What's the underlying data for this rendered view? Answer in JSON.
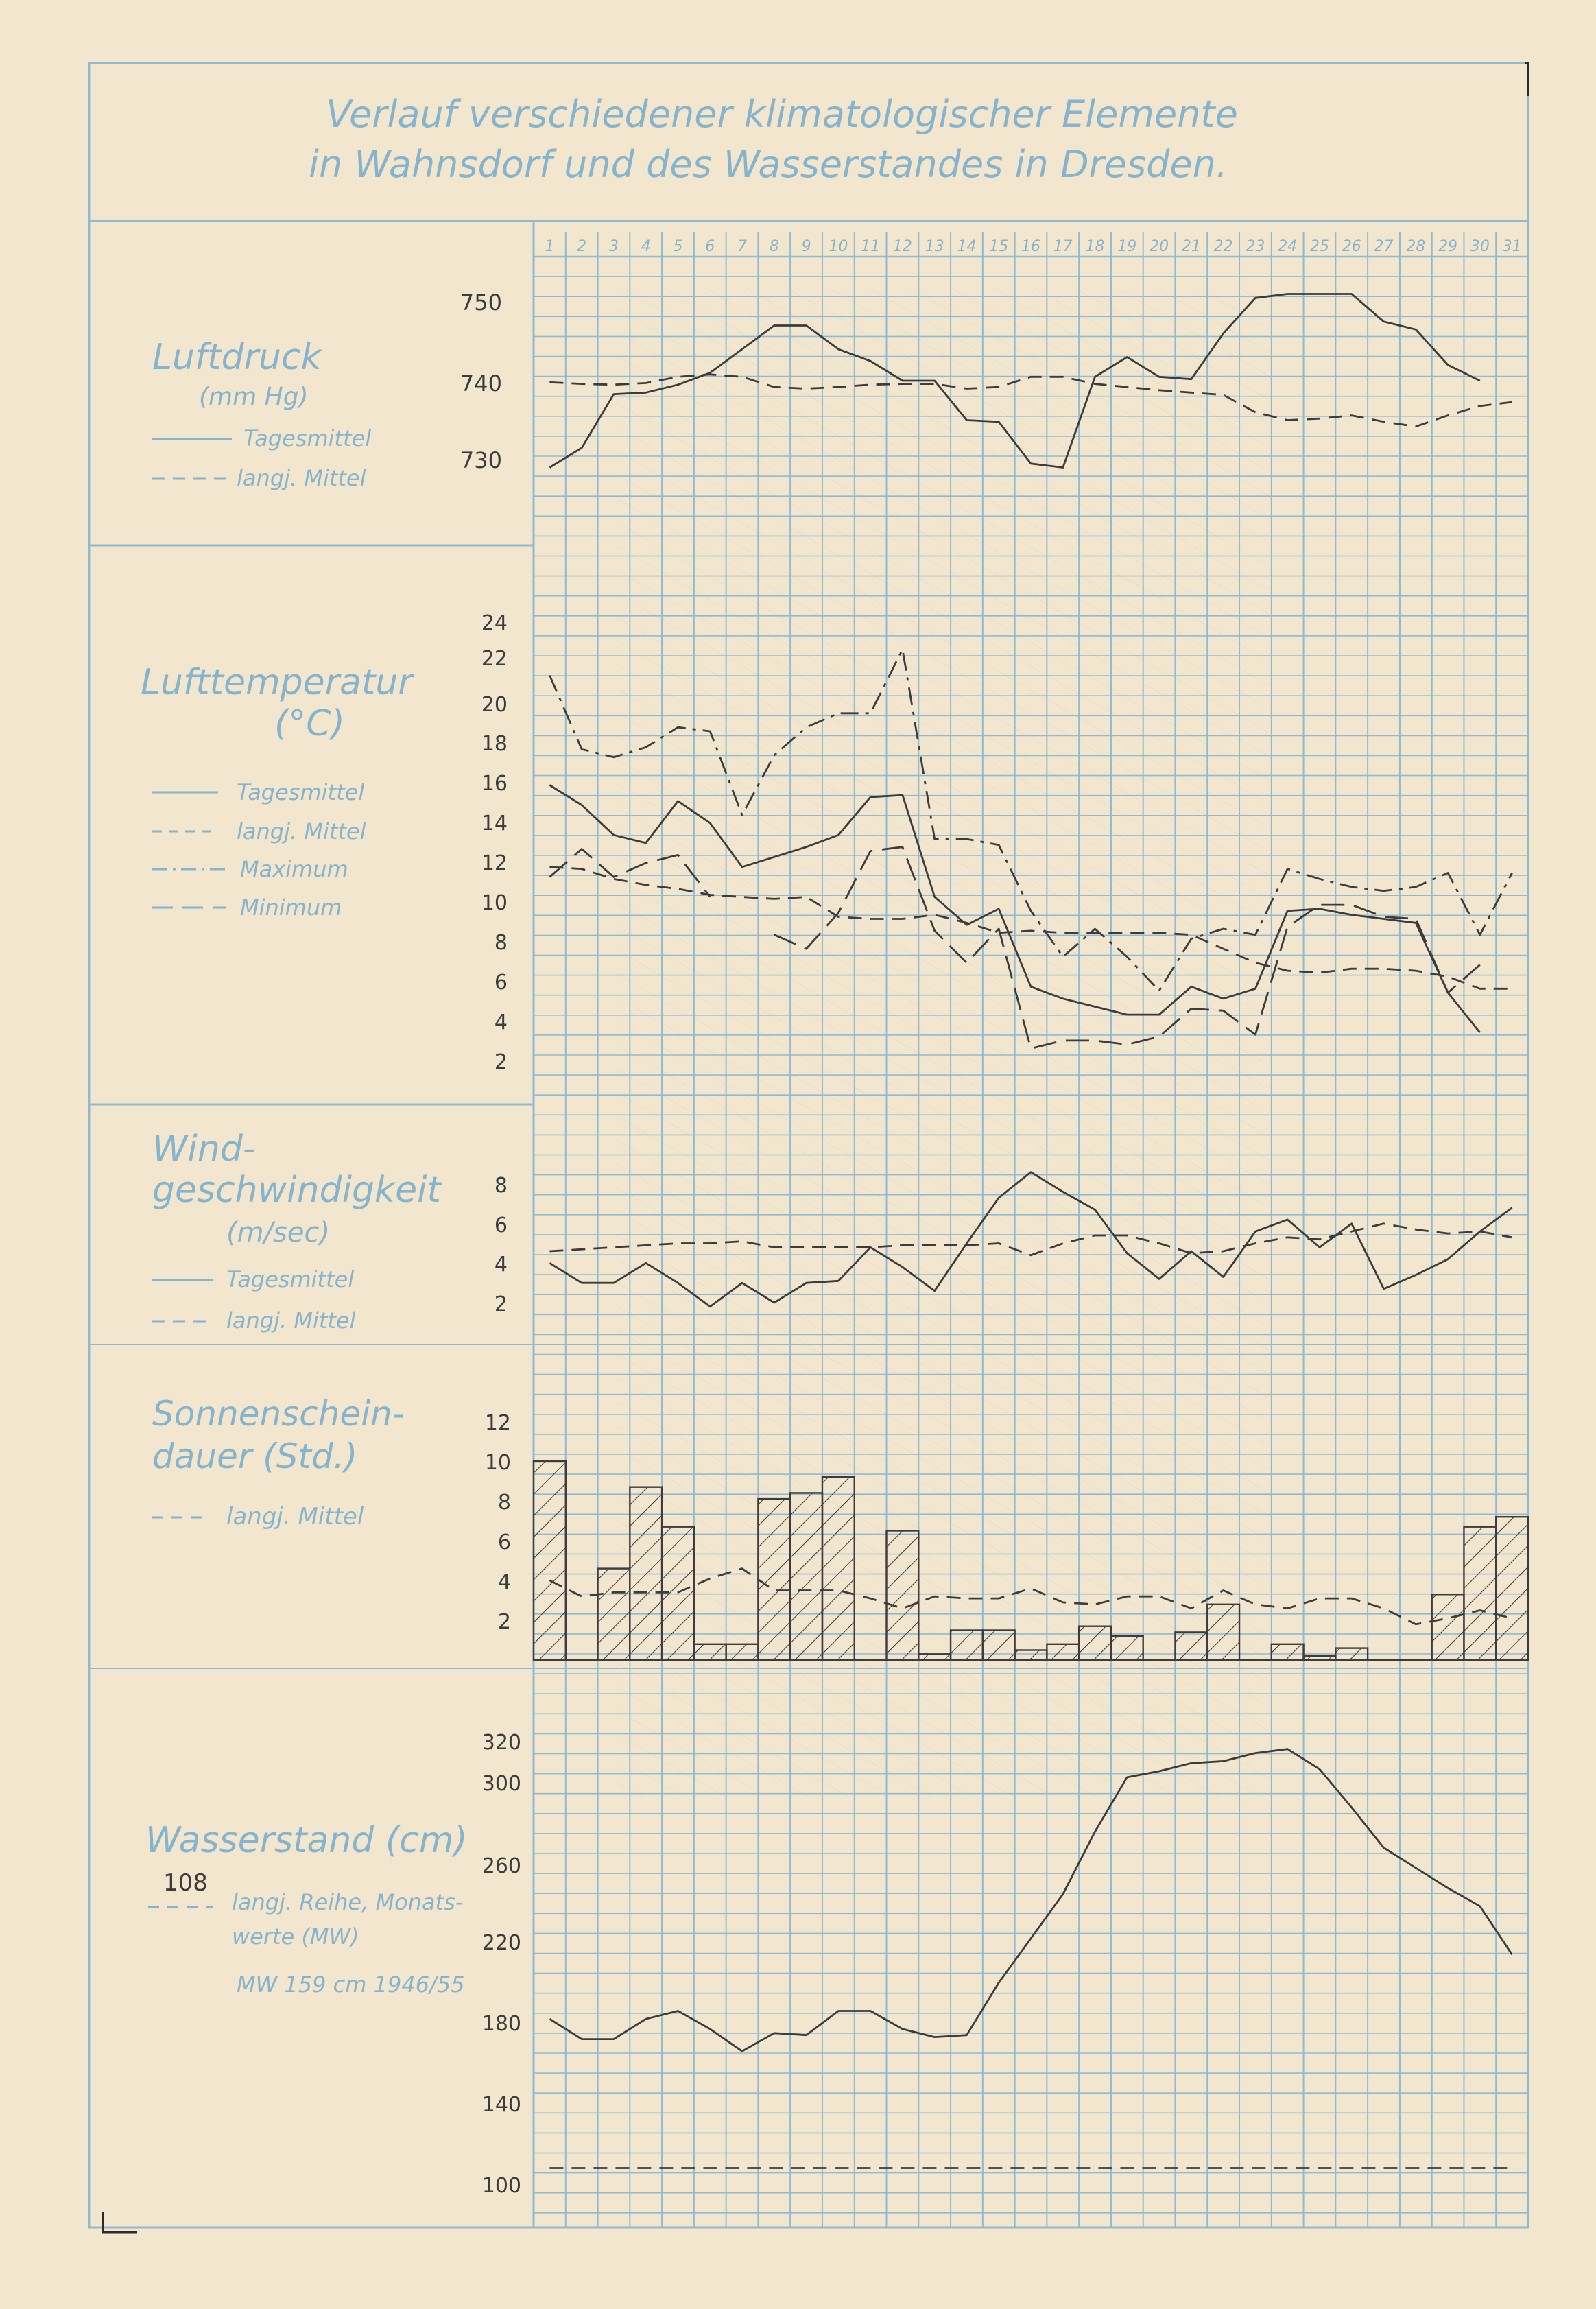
{
  "title": {
    "line1": "Verlauf verschiedener klimatologischer Elemente",
    "line2": "in Wahnsdorf und des Wasserstandes in Dresden."
  },
  "colors": {
    "grid": "#8fbad0",
    "ink": "#3c3c3c",
    "paper": "#f3e6cf"
  },
  "days": [
    "1",
    "2",
    "3",
    "4",
    "5",
    "6",
    "7",
    "8",
    "9",
    "10",
    "11",
    "12",
    "13",
    "14",
    "15",
    "16",
    "17",
    "18",
    "19",
    "20",
    "21",
    "22",
    "23",
    "24",
    "25",
    "26",
    "27",
    "28",
    "29",
    "30",
    "31"
  ],
  "panels": {
    "luftdruck": {
      "title": "Luftdruck",
      "unit": "(mm Hg)",
      "legend": [
        "Tagesmittel",
        "langj. Mittel"
      ],
      "ticks": [
        "750",
        "740",
        "730"
      ]
    },
    "temperatur": {
      "title_line1": "Lufttemperatur",
      "unit": "(°C)",
      "legend": [
        "Tagesmittel",
        "langj. Mittel",
        "Maximum",
        "Minimum"
      ],
      "ticks": [
        "24",
        "22",
        "20",
        "18",
        "16",
        "14",
        "12",
        "10",
        "8",
        "6",
        "4",
        "2"
      ]
    },
    "wind": {
      "title_line1": "Wind-",
      "title_line2": "geschwindigkeit",
      "unit": "(m/sec)",
      "legend": [
        "Tagesmittel",
        "langj. Mittel"
      ],
      "ticks": [
        "8",
        "6",
        "4",
        "2"
      ]
    },
    "sonne": {
      "title_line1": "Sonnenschein-",
      "title_line2": "dauer (Std.)",
      "legend": [
        "langj. Mittel"
      ],
      "ticks": [
        "12",
        "10",
        "8",
        "6",
        "4",
        "2"
      ]
    },
    "wasser": {
      "title": "Wasserstand (cm)",
      "note_value": "108",
      "legend_line1": "langj. Reihe, Monats-",
      "legend_line2": "werte (MW)",
      "mw_note": "MW 159 cm 1946/55",
      "ticks": [
        "320",
        "300",
        "260",
        "220",
        "180",
        "140",
        "100"
      ]
    }
  },
  "chart_data": [
    {
      "type": "line",
      "title": "Luftdruck",
      "ylabel": "(mm Hg)",
      "ylim": [
        726,
        755
      ],
      "x": [
        1,
        2,
        3,
        4,
        5,
        6,
        7,
        8,
        9,
        10,
        11,
        12,
        13,
        14,
        15,
        16,
        17,
        18,
        19,
        20,
        21,
        22,
        23,
        24,
        25,
        26,
        27,
        28,
        29,
        30,
        31
      ],
      "series": [
        {
          "name": "Tagesmittel",
          "style": "solid",
          "values": [
            729,
            731.5,
            738.3,
            738.5,
            739.5,
            741,
            744,
            747,
            747,
            744,
            742.5,
            740,
            740,
            735,
            734.8,
            729.5,
            729,
            740.5,
            743,
            740.5,
            740.2,
            746,
            750.5,
            751,
            751,
            751,
            747.5,
            746.5,
            742,
            740,
            null
          ]
        },
        {
          "name": "langj. Mittel",
          "style": "dashed",
          "values": [
            739.8,
            739.6,
            739.5,
            739.7,
            740.5,
            740.8,
            740.5,
            739.2,
            739,
            739.2,
            739.5,
            739.6,
            739.6,
            739,
            739.2,
            740.5,
            740.5,
            739.6,
            739.2,
            738.8,
            738.5,
            738.2,
            736,
            735,
            735.2,
            735.6,
            734.8,
            734.2,
            735.6,
            736.8,
            737.3
          ]
        }
      ]
    },
    {
      "type": "line",
      "title": "Lufttemperatur",
      "ylabel": "(°C)",
      "ylim": [
        0,
        24
      ],
      "x": [
        1,
        2,
        3,
        4,
        5,
        6,
        7,
        8,
        9,
        10,
        11,
        12,
        13,
        14,
        15,
        16,
        17,
        18,
        19,
        20,
        21,
        22,
        23,
        24,
        25,
        26,
        27,
        28,
        29,
        30,
        31
      ],
      "series": [
        {
          "name": "Tagesmittel",
          "style": "solid",
          "values": [
            15.8,
            14.8,
            13.3,
            12.9,
            15,
            13.9,
            11.7,
            12.2,
            12.7,
            13.3,
            15.2,
            15.3,
            10.2,
            8.8,
            9.6,
            5.7,
            5.1,
            4.7,
            4.3,
            4.3,
            5.7,
            5.1,
            5.6,
            9.5,
            9.6,
            9.3,
            9.1,
            8.9,
            5.4,
            3.4,
            null
          ]
        },
        {
          "name": "langj. Mittel",
          "style": "dashed",
          "values": [
            11.7,
            11.6,
            11.1,
            10.8,
            10.6,
            10.3,
            10.2,
            10.1,
            10.2,
            9.2,
            9.1,
            9.1,
            9.3,
            8.9,
            8.4,
            8.5,
            8.4,
            8.4,
            8.4,
            8.4,
            8.3,
            7.6,
            6.9,
            6.5,
            6.4,
            6.6,
            6.6,
            6.5,
            6.2,
            5.6,
            5.6
          ]
        },
        {
          "name": "Maximum",
          "style": "dashdot",
          "values": [
            21.3,
            17.6,
            17.2,
            17.7,
            18.7,
            18.5,
            14.3,
            17.3,
            18.7,
            19.4,
            19.4,
            22.6,
            13.1,
            13.1,
            12.8,
            9.5,
            7.2,
            8.6,
            7.2,
            5.5,
            8.1,
            8.6,
            8.3,
            11.6,
            11.1,
            10.7,
            10.5,
            10.7,
            11.4,
            8.3,
            11.4
          ]
        },
        {
          "name": "Minimum",
          "style": "longdash",
          "values": [
            11.2,
            12.6,
            11.2,
            11.9,
            12.3,
            10.2,
            null,
            8.3,
            7.6,
            9.4,
            12.5,
            12.7,
            8.5,
            6.9,
            8.6,
            2.6,
            3.0,
            3.0,
            2.8,
            3.2,
            4.6,
            4.5,
            3.3,
            8.7,
            9.8,
            9.8,
            9.2,
            9.1,
            5.4,
            6.8,
            null
          ]
        }
      ]
    },
    {
      "type": "line",
      "title": "Windgeschwindigkeit",
      "ylabel": "(m/sec)",
      "ylim": [
        1,
        9
      ],
      "x": [
        1,
        2,
        3,
        4,
        5,
        6,
        7,
        8,
        9,
        10,
        11,
        12,
        13,
        14,
        15,
        16,
        17,
        18,
        19,
        20,
        21,
        22,
        23,
        24,
        25,
        26,
        27,
        28,
        29,
        30,
        31
      ],
      "series": [
        {
          "name": "Tagesmittel",
          "style": "solid",
          "values": [
            4,
            3,
            3,
            4,
            3,
            1.8,
            3,
            2,
            3,
            3.1,
            4.8,
            3.8,
            2.6,
            5,
            7.3,
            8.6,
            7.6,
            6.7,
            4.5,
            3.2,
            4.6,
            3.3,
            5.6,
            6.2,
            4.8,
            6,
            2.7,
            3.4,
            4.2,
            5.6,
            6.8
          ]
        },
        {
          "name": "langj. Mittel",
          "style": "dashed",
          "values": [
            4.6,
            4.7,
            4.8,
            4.9,
            5,
            5,
            5.1,
            4.8,
            4.8,
            4.8,
            4.8,
            4.9,
            4.9,
            4.9,
            5,
            4.4,
            5,
            5.4,
            5.4,
            5,
            4.5,
            4.6,
            5,
            5.3,
            5.2,
            5.6,
            6,
            5.7,
            5.5,
            5.6,
            5.3
          ]
        }
      ]
    },
    {
      "type": "bar",
      "title": "Sonnenscheindauer (Std.)",
      "ylim": [
        0,
        12
      ],
      "categories": [
        "1",
        "2",
        "3",
        "4",
        "5",
        "6",
        "7",
        "8",
        "9",
        "10",
        "11",
        "12",
        "13",
        "14",
        "15",
        "16",
        "17",
        "18",
        "19",
        "20",
        "21",
        "22",
        "23",
        "24",
        "25",
        "26",
        "27",
        "28",
        "29",
        "30",
        "31"
      ],
      "values": [
        10,
        0,
        4.6,
        8.7,
        6.7,
        0.8,
        0.8,
        8.1,
        8.4,
        9.2,
        0,
        6.5,
        0.3,
        1.5,
        1.5,
        0.5,
        0.8,
        1.7,
        1.2,
        0,
        1.4,
        2.8,
        0,
        0.8,
        0.2,
        0.6,
        0,
        0,
        3.3,
        6.7,
        7.2
      ],
      "series": [
        {
          "name": "langj. Mittel",
          "style": "dashed",
          "values": [
            4,
            3.2,
            3.4,
            3.4,
            3.4,
            4.1,
            4.6,
            3.5,
            3.5,
            3.5,
            3.1,
            2.6,
            3.2,
            3.1,
            3.1,
            3.6,
            2.9,
            2.8,
            3.2,
            3.2,
            2.6,
            3.5,
            2.8,
            2.6,
            3.1,
            3.1,
            2.6,
            1.8,
            2.1,
            2.5,
            2.1
          ]
        }
      ]
    },
    {
      "type": "line",
      "title": "Wasserstand (cm)",
      "ylim": [
        95,
        335
      ],
      "x": [
        1,
        2,
        3,
        4,
        5,
        6,
        7,
        8,
        9,
        10,
        11,
        12,
        13,
        14,
        15,
        16,
        17,
        18,
        19,
        20,
        21,
        22,
        23,
        24,
        25,
        26,
        27,
        28,
        29,
        30,
        31
      ],
      "series": [
        {
          "name": "Wasserstand",
          "style": "solid",
          "values": [
            182,
            172,
            172,
            182,
            186,
            177,
            166,
            175,
            174,
            186,
            186,
            177,
            173,
            174,
            200,
            222,
            244,
            275,
            302,
            305,
            309,
            310,
            314,
            316,
            306,
            287,
            267,
            257,
            247,
            238,
            214
          ]
        },
        {
          "name": "langj. Reihe, Monatswerte (MW)",
          "style": "dashed",
          "values": [
            108,
            108,
            108,
            108,
            108,
            108,
            108,
            108,
            108,
            108,
            108,
            108,
            108,
            108,
            108,
            108,
            108,
            108,
            108,
            108,
            108,
            108,
            108,
            108,
            108,
            108,
            108,
            108,
            108,
            108,
            108
          ]
        }
      ]
    }
  ]
}
